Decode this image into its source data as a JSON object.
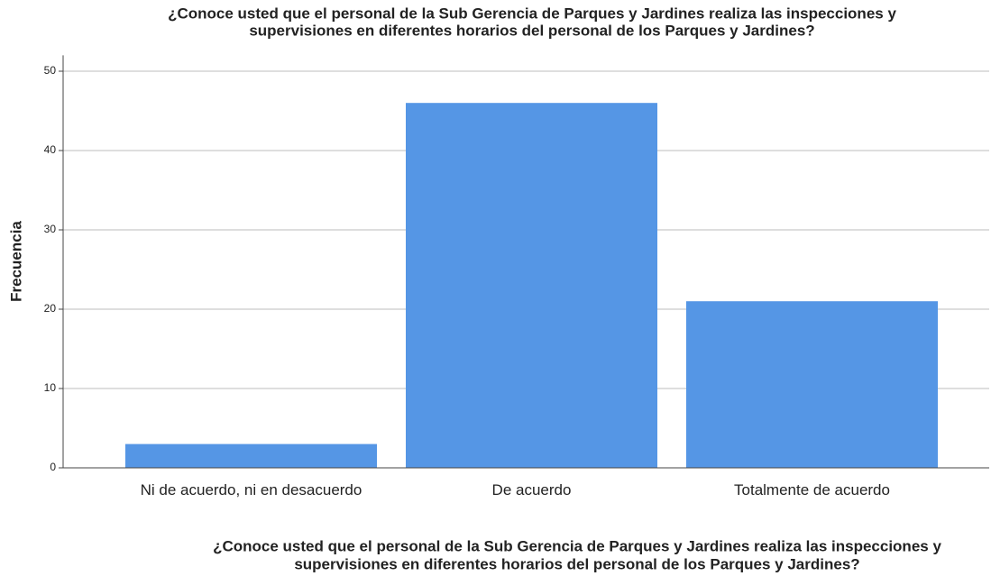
{
  "chart_data": {
    "type": "bar",
    "title": [
      "¿Conoce usted que el personal de la Sub Gerencia de Parques y Jardines realiza las inspecciones y",
      "supervisiones  en diferentes horarios del personal de los Parques y Jardines?"
    ],
    "xlabel": [
      "¿Conoce usted que el personal de la Sub Gerencia de Parques y Jardines realiza las inspecciones y",
      "supervisiones  en diferentes horarios del personal de los Parques y Jardines?"
    ],
    "ylabel": "Frecuencia",
    "categories": [
      "Ni de acuerdo, ni en desacuerdo",
      "De acuerdo",
      "Totalmente de acuerdo"
    ],
    "values": [
      3,
      46,
      21
    ],
    "color": "#5596e5",
    "ylim": [
      0,
      52
    ],
    "yticks": [
      0,
      10,
      20,
      30,
      40,
      50
    ],
    "grid": true
  }
}
